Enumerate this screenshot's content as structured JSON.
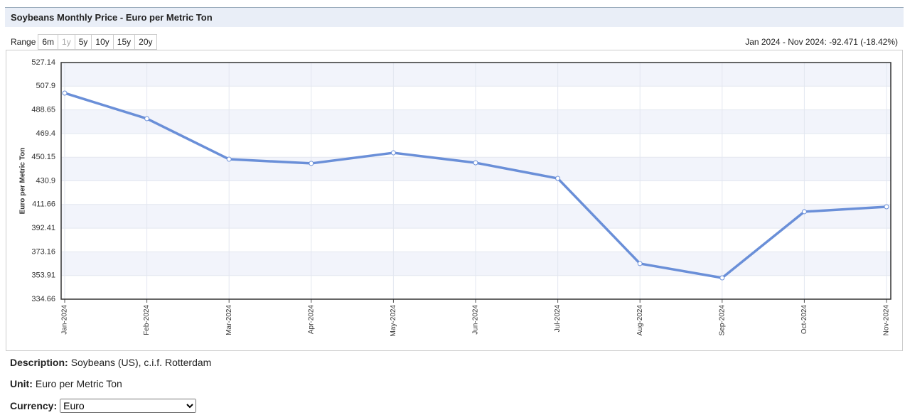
{
  "page": {
    "range_label": "Range",
    "ranges": [
      "6m",
      "1y",
      "5y",
      "10y",
      "15y",
      "20y"
    ],
    "disabled_range": 1,
    "change_text": "Jan 2024 - Nov 2024: -92.471 (-18.42%)",
    "description_label": "Description:",
    "description": "Soybeans (US), c.i.f. Rotterdam",
    "unit_label": "Unit:",
    "unit": "Euro per Metric Ton",
    "currency_label": "Currency:",
    "currency": "Euro"
  },
  "chart_data": {
    "type": "line",
    "title": "Soybeans Monthly Price - Euro per Metric Ton",
    "y_label": "Euro per Metric Ton",
    "categories": [
      "Jan-2024",
      "Feb-2024",
      "Mar-2024",
      "Apr-2024",
      "May-2024",
      "Jun-2024",
      "Jul-2024",
      "Aug-2024",
      "Sep-2024",
      "Oct-2024",
      "Nov-2024"
    ],
    "series": [
      {
        "name": "Euro per Metric Ton",
        "color": "#6a8fd8",
        "values": [
          502.3,
          481.5,
          448.5,
          445.1,
          453.7,
          445.6,
          432.9,
          363.6,
          352.0,
          405.8,
          409.8
        ]
      }
    ],
    "ylim": [
      334.66,
      527.14
    ],
    "yticks": [
      334.66,
      353.91,
      373.16,
      392.41,
      411.66,
      430.9,
      450.15,
      469.4,
      488.65,
      507.9,
      527.14
    ],
    "grid": true
  }
}
